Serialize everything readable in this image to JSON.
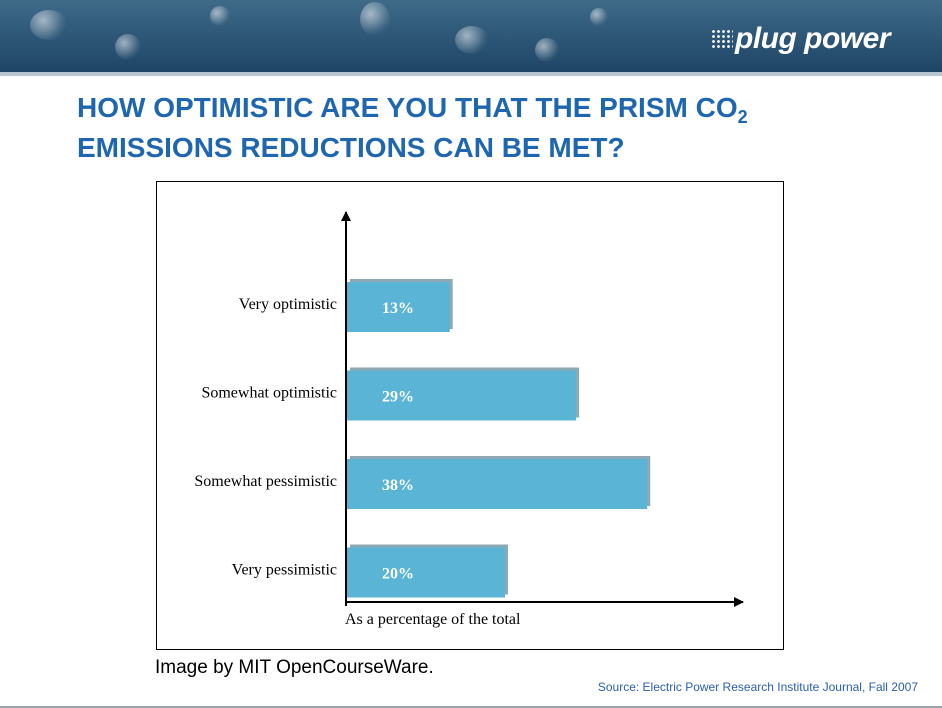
{
  "header": {
    "brand": "plug power"
  },
  "title": {
    "line1_text": "HOW OPTIMISTIC ARE YOU THAT THE PRISM CO",
    "line1_sub": "2",
    "line2_text": "EMISSIONS REDUCTIONS CAN BE MET?"
  },
  "colors": {
    "title": "#1f66b1",
    "bar": "#5ab4d6",
    "header": "#2c5576",
    "source": "#2a5fae"
  },
  "chart_data": {
    "type": "bar",
    "orientation": "horizontal",
    "categories": [
      "Very optimistic",
      "Somewhat optimistic",
      "Somewhat pessimistic",
      "Very pessimistic"
    ],
    "values": [
      13,
      29,
      38,
      20
    ],
    "data_labels": [
      "13%",
      "29%",
      "38%",
      "20%"
    ],
    "xlabel": "As a percentage of the total",
    "ylabel": "",
    "xlim": [
      0,
      50
    ],
    "grid": false,
    "legend": "none"
  },
  "credit": "Image by MIT OpenCourseWare.",
  "source": "Source: Electric Power Research Institute Journal, Fall 2007"
}
